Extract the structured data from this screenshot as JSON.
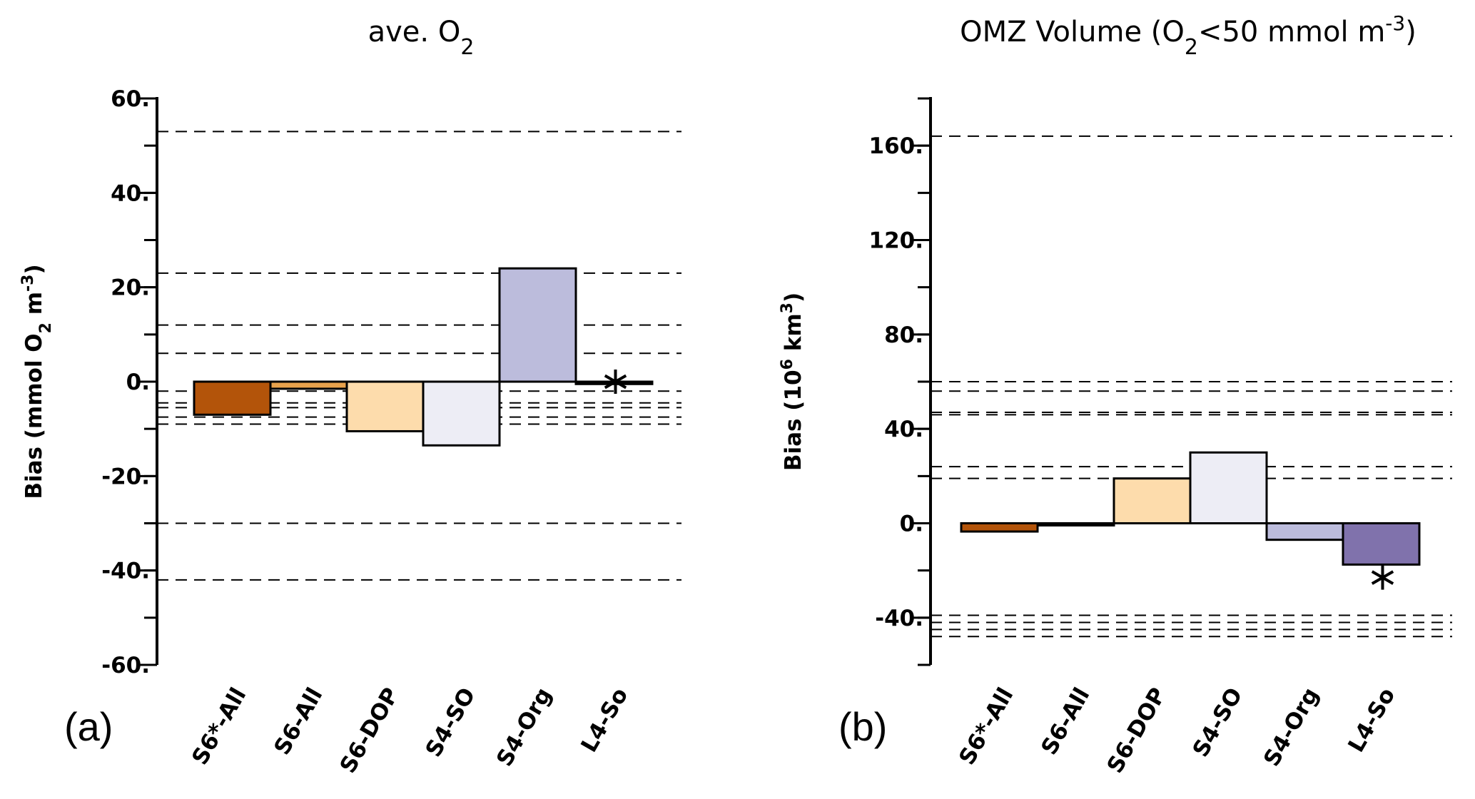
{
  "chart_data": [
    {
      "type": "bar",
      "panel_label": "(a)",
      "title_main": "ave. O",
      "title_sub": "2",
      "ylabel_main": "Bias (mmol O",
      "ylabel_sub": "2",
      "ylabel_mid": " m",
      "ylabel_sup": "-3",
      "ylabel_end": ")",
      "ylim": [
        -60,
        60
      ],
      "yticks": [
        -60,
        -40,
        -20,
        0,
        20,
        40,
        60
      ],
      "ytick_labels": [
        "-60.",
        "-40.",
        "-20.",
        "0.",
        "20.",
        "40.",
        "60."
      ],
      "minor_step": 10,
      "categories": [
        "S6*-All",
        "S6-All",
        "S6-DOP",
        "S4-SO",
        "S4-Org",
        "L4-So"
      ],
      "values": [
        -7,
        -1.5,
        -10.5,
        -13.5,
        24,
        -0.5
      ],
      "colors": [
        "#b3540a",
        "#e8a24c",
        "#fddcac",
        "#ededf5",
        "#bcbcdc",
        "#000000"
      ],
      "star": {
        "category": "L4-So",
        "value": 0
      },
      "reference_lines": [
        53,
        23,
        12,
        6,
        -2,
        -4.5,
        -5.5,
        -7.5,
        -9,
        -30,
        -42
      ]
    },
    {
      "type": "bar",
      "panel_label": "(b)",
      "title_main": "OMZ Volume (O",
      "title_sub": "2",
      "title_mid": "<50 mmol m",
      "title_sup": "-3",
      "title_end": ")",
      "ylabel_main": "Bias (10",
      "ylabel_sup": "6",
      "ylabel_mid": " km",
      "ylabel_sup2": "3",
      "ylabel_end": ")",
      "ylim": [
        -60,
        180
      ],
      "yticks": [
        -40,
        0,
        40,
        80,
        120,
        160
      ],
      "ytick_labels": [
        "-40.",
        "0.",
        "40.",
        "80.",
        "120.",
        "160."
      ],
      "minor_step": 20,
      "categories": [
        "S6*-All",
        "S6-All",
        "S6-DOP",
        "S4-SO",
        "S4-Org",
        "L4-So"
      ],
      "values": [
        -3.5,
        0,
        19,
        30,
        -7,
        -17.5
      ],
      "colors": [
        "#b3540a",
        "#e8a24c",
        "#fddcac",
        "#ededf5",
        "#bcbcdc",
        "#8072ac"
      ],
      "star": {
        "category": "L4-So",
        "value": -23
      },
      "reference_lines": [
        164,
        60,
        56,
        47,
        46,
        24,
        19,
        -39,
        -42,
        -45,
        -48
      ]
    }
  ]
}
